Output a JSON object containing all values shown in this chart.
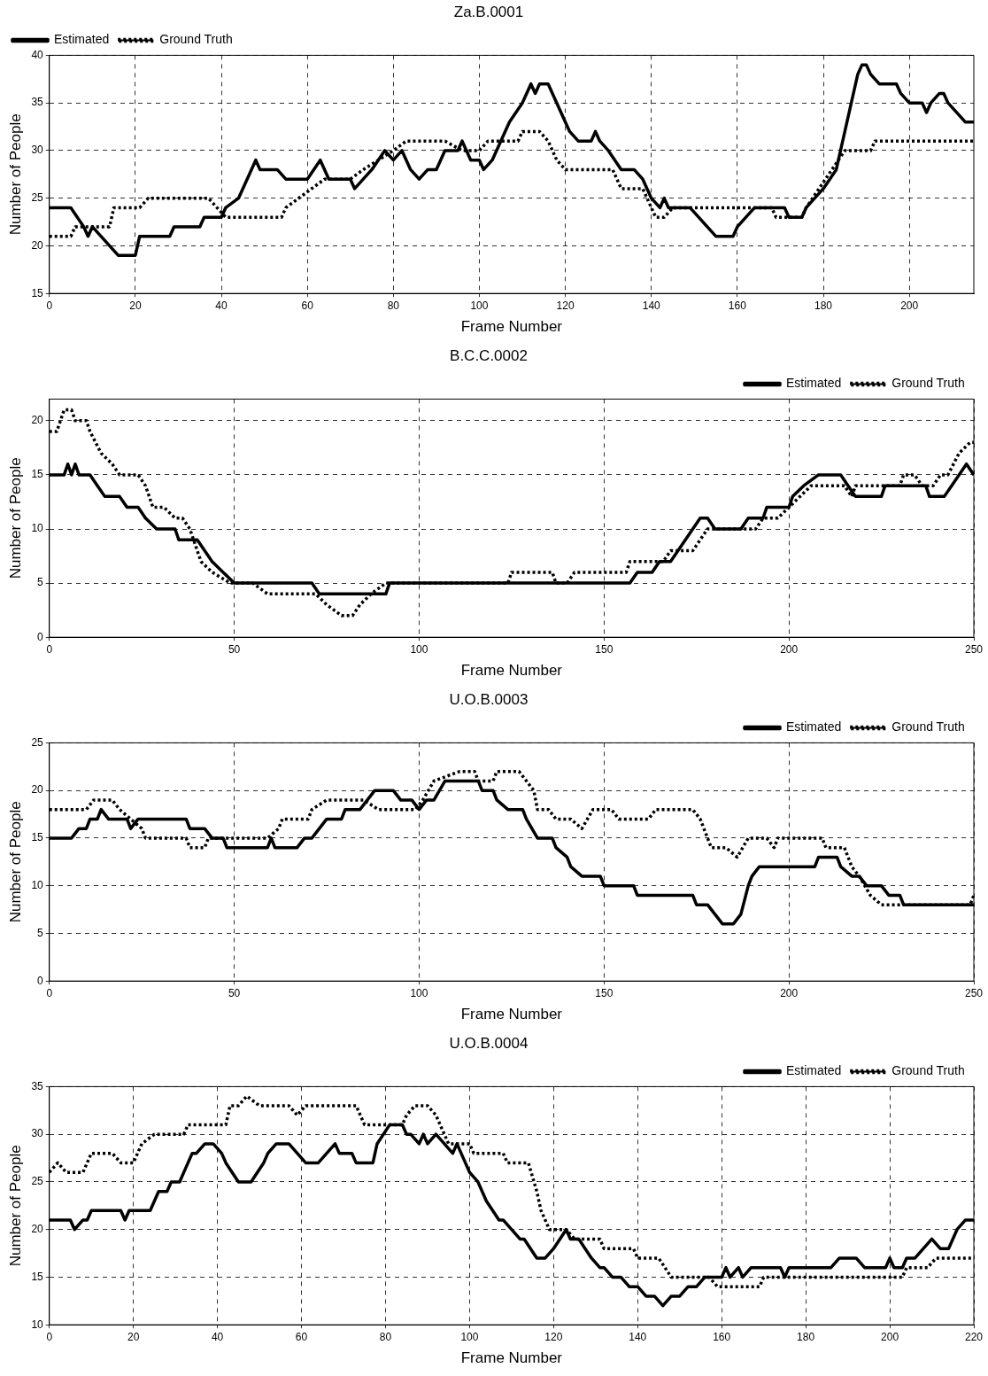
{
  "chart_data": [
    {
      "type": "line",
      "title": "Za.B.0001",
      "xlabel": "Frame Number",
      "ylabel": "Number of People",
      "xlim": [
        0,
        215
      ],
      "xticks": [
        0,
        20,
        40,
        60,
        80,
        100,
        120,
        140,
        160,
        180,
        200
      ],
      "ylim": [
        15,
        40
      ],
      "yticks": [
        15,
        20,
        25,
        30,
        35,
        40
      ],
      "grid": true,
      "legend": "top left",
      "series": [
        {
          "name": "Estimated",
          "color": "#000000",
          "line_style": "solid",
          "x": [
            0,
            5,
            8,
            9,
            10,
            12,
            14,
            16,
            20,
            21,
            28,
            29,
            35,
            36,
            40,
            41,
            44,
            48,
            49,
            53,
            55,
            60,
            63,
            65,
            70,
            71,
            73,
            75,
            78,
            80,
            82,
            84,
            86,
            88,
            90,
            92,
            95,
            96,
            98,
            100,
            101,
            103,
            106,
            107,
            110,
            112,
            113,
            114,
            116,
            118,
            120,
            121,
            123,
            126,
            127,
            128,
            130,
            133,
            136,
            138,
            140,
            142,
            143,
            144,
            149,
            151,
            153,
            155,
            159,
            160,
            162,
            164,
            171,
            172,
            175,
            176,
            178,
            180,
            183,
            185,
            187,
            188,
            189,
            190,
            191,
            193,
            197,
            198,
            200,
            203,
            204,
            205,
            207,
            208,
            209,
            211,
            213,
            215
          ],
          "values": [
            24,
            24,
            22,
            21,
            22,
            21,
            20,
            19,
            19,
            21,
            21,
            22,
            22,
            23,
            23,
            24,
            25,
            29,
            28,
            28,
            27,
            27,
            29,
            27,
            27,
            26,
            27,
            28,
            30,
            29,
            30,
            28,
            27,
            28,
            28,
            30,
            30,
            31,
            29,
            29,
            28,
            29,
            32,
            33,
            35,
            37,
            36,
            37,
            37,
            35,
            33,
            32,
            31,
            31,
            32,
            31,
            30,
            28,
            28,
            27,
            25,
            24,
            25,
            24,
            24,
            23,
            22,
            21,
            21,
            22,
            23,
            24,
            24,
            23,
            23,
            24,
            25,
            26,
            28,
            32,
            36,
            38,
            39,
            39,
            38,
            37,
            37,
            36,
            35,
            35,
            34,
            35,
            36,
            36,
            35,
            34,
            33,
            33
          ]
        },
        {
          "name": "Ground Truth",
          "color": "#000000",
          "line_style": "dotted",
          "x": [
            0,
            5,
            6,
            14,
            15,
            21,
            23,
            37,
            39,
            41,
            54,
            55,
            61,
            64,
            70,
            73,
            80,
            83,
            92,
            96,
            100,
            102,
            109,
            110,
            114,
            116,
            118,
            120,
            131,
            133,
            138,
            141,
            143,
            145,
            168,
            169,
            175,
            176,
            179,
            182,
            185,
            191,
            192,
            215
          ],
          "values": [
            21,
            21,
            22,
            22,
            24,
            24,
            25,
            25,
            24,
            23,
            23,
            24,
            26,
            27,
            27,
            28,
            30,
            31,
            31,
            30,
            30,
            31,
            31,
            32,
            32,
            31,
            29,
            28,
            28,
            26,
            26,
            23,
            23,
            24,
            24,
            23,
            23,
            24,
            26,
            28,
            30,
            30,
            31,
            31
          ]
        }
      ]
    },
    {
      "type": "line",
      "title": "B.C.C.0002",
      "xlabel": "Frame Number",
      "ylabel": "Number of People",
      "xlim": [
        0,
        250
      ],
      "xticks": [
        0,
        50,
        100,
        150,
        200,
        250
      ],
      "ylim": [
        0,
        22
      ],
      "yticks": [
        0,
        5,
        10,
        15,
        20
      ],
      "grid": true,
      "legend": "top right",
      "series": [
        {
          "name": "Estimated",
          "color": "#000000",
          "line_style": "solid",
          "x": [
            0,
            4,
            5,
            6,
            7,
            8,
            11,
            13,
            15,
            19,
            21,
            24,
            26,
            29,
            34,
            35,
            40,
            42,
            44,
            47,
            50,
            71,
            73,
            91,
            92,
            157,
            159,
            163,
            165,
            168,
            170,
            172,
            174,
            176,
            178,
            180,
            187,
            189,
            193,
            194,
            200,
            201,
            204,
            208,
            214,
            216,
            218,
            225,
            226,
            237,
            238,
            242,
            244,
            246,
            248,
            250
          ],
          "values": [
            15,
            15,
            16,
            15,
            16,
            15,
            15,
            14,
            13,
            13,
            12,
            12,
            11,
            10,
            10,
            9,
            9,
            8,
            7,
            6,
            5,
            5,
            4,
            4,
            5,
            5,
            6,
            6,
            7,
            7,
            8,
            9,
            10,
            11,
            11,
            10,
            10,
            11,
            11,
            12,
            12,
            13,
            14,
            15,
            15,
            14,
            13,
            13,
            14,
            14,
            13,
            13,
            14,
            15,
            16,
            15
          ]
        },
        {
          "name": "Ground Truth",
          "color": "#000000",
          "line_style": "dotted",
          "x": [
            0,
            2,
            3,
            4,
            6,
            7,
            10,
            11,
            14,
            17,
            19,
            24,
            26,
            28,
            31,
            34,
            36,
            38,
            39,
            41,
            44,
            49,
            55,
            59,
            72,
            75,
            79,
            82,
            84,
            87,
            91,
            124,
            125,
            136,
            137,
            140,
            142,
            156,
            157,
            166,
            168,
            174,
            176,
            178,
            191,
            193,
            197,
            200,
            203,
            206,
            215,
            217,
            218,
            230,
            231,
            234,
            236,
            239,
            241,
            243,
            246,
            249,
            250
          ],
          "values": [
            19,
            19,
            20,
            21,
            21,
            20,
            20,
            19,
            17,
            16,
            15,
            15,
            14,
            12,
            12,
            11,
            11,
            10,
            9,
            7,
            6,
            5,
            5,
            4,
            4,
            3,
            2,
            2,
            3,
            4,
            5,
            5,
            6,
            6,
            5,
            5,
            6,
            6,
            7,
            7,
            8,
            8,
            9,
            10,
            10,
            11,
            11,
            12,
            13,
            14,
            14,
            13,
            14,
            14,
            15,
            15,
            14,
            14,
            15,
            15,
            17,
            18,
            18
          ]
        }
      ]
    },
    {
      "type": "line",
      "title": "U.O.B.0003",
      "xlabel": "Frame Number",
      "ylabel": "Number of People",
      "xlim": [
        0,
        250
      ],
      "xticks": [
        0,
        50,
        100,
        150,
        200,
        250
      ],
      "ylim": [
        0,
        25
      ],
      "yticks": [
        0,
        5,
        10,
        15,
        20,
        25
      ],
      "grid": true,
      "legend": "top right",
      "series": [
        {
          "name": "Estimated",
          "color": "#000000",
          "line_style": "solid",
          "x": [
            0,
            6,
            8,
            10,
            11,
            13,
            14,
            16,
            21,
            22,
            24,
            37,
            38,
            42,
            44,
            47,
            48,
            59,
            60,
            61,
            67,
            69,
            71,
            73,
            75,
            79,
            80,
            84,
            86,
            88,
            93,
            95,
            98,
            100,
            102,
            104,
            107,
            116,
            117,
            120,
            121,
            124,
            128,
            129,
            132,
            136,
            137,
            140,
            141,
            144,
            149,
            150,
            158,
            159,
            174,
            175,
            178,
            180,
            182,
            185,
            187,
            189,
            190,
            192,
            207,
            208,
            213,
            214,
            217,
            219,
            221,
            225,
            227,
            230,
            231,
            250
          ],
          "values": [
            15,
            15,
            16,
            16,
            17,
            17,
            18,
            17,
            17,
            16,
            17,
            17,
            16,
            16,
            15,
            15,
            14,
            14,
            15,
            14,
            14,
            15,
            15,
            16,
            17,
            17,
            18,
            18,
            19,
            20,
            20,
            19,
            19,
            18,
            19,
            19,
            21,
            21,
            20,
            20,
            19,
            18,
            18,
            17,
            15,
            15,
            14,
            13,
            12,
            11,
            11,
            10,
            10,
            9,
            9,
            8,
            8,
            7,
            6,
            6,
            7,
            10,
            11,
            12,
            12,
            13,
            13,
            12,
            11,
            11,
            10,
            10,
            9,
            9,
            8,
            8
          ]
        },
        {
          "name": "Ground Truth",
          "color": "#000000",
          "line_style": "dotted",
          "x": [
            0,
            10,
            12,
            17,
            19,
            25,
            26,
            37,
            38,
            42,
            43,
            59,
            62,
            63,
            70,
            71,
            75,
            85,
            89,
            99,
            101,
            104,
            111,
            115,
            116,
            120,
            121,
            127,
            129,
            131,
            132,
            135,
            137,
            141,
            144,
            147,
            152,
            154,
            162,
            164,
            174,
            176,
            179,
            183,
            186,
            189,
            194,
            196,
            197,
            209,
            210,
            215,
            217,
            219,
            222,
            225,
            249,
            250
          ],
          "values": [
            18,
            18,
            19,
            19,
            18,
            16,
            15,
            15,
            14,
            14,
            15,
            15,
            16,
            17,
            17,
            18,
            19,
            19,
            18,
            18,
            19,
            21,
            22,
            22,
            21,
            21,
            22,
            22,
            21,
            20,
            18,
            18,
            17,
            17,
            16,
            18,
            18,
            17,
            17,
            18,
            18,
            17,
            14,
            14,
            13,
            15,
            15,
            14,
            15,
            15,
            14,
            14,
            12,
            11,
            9,
            8,
            8,
            9
          ]
        }
      ]
    },
    {
      "type": "line",
      "title": "U.O.B.0004",
      "xlabel": "Frame Number",
      "ylabel": "Number of People",
      "xlim": [
        0,
        220
      ],
      "xticks": [
        0,
        20,
        40,
        60,
        80,
        100,
        120,
        140,
        160,
        180,
        200,
        220
      ],
      "ylim": [
        10,
        35
      ],
      "yticks": [
        10,
        15,
        20,
        25,
        30,
        35
      ],
      "grid": true,
      "legend": "top right",
      "series": [
        {
          "name": "Estimated",
          "color": "#000000",
          "line_style": "solid",
          "x": [
            0,
            5,
            6,
            8,
            9,
            10,
            17,
            18,
            19,
            24,
            26,
            28,
            29,
            31,
            32,
            34,
            35,
            37,
            39,
            41,
            42,
            45,
            48,
            51,
            52,
            54,
            57,
            59,
            61,
            64,
            66,
            68,
            69,
            72,
            73,
            77,
            78,
            81,
            84,
            85,
            86,
            88,
            89,
            90,
            92,
            94,
            96,
            97,
            100,
            102,
            104,
            107,
            108,
            110,
            112,
            113,
            116,
            118,
            120,
            123,
            124,
            126,
            129,
            131,
            132,
            134,
            136,
            138,
            140,
            142,
            144,
            146,
            148,
            150,
            152,
            154,
            156,
            160,
            161,
            162,
            164,
            165,
            167,
            174,
            175,
            176,
            186,
            188,
            192,
            194,
            199,
            200,
            201,
            203,
            204,
            206,
            208,
            210,
            212,
            214,
            216,
            218,
            220
          ],
          "values": [
            21,
            21,
            20,
            21,
            21,
            22,
            22,
            21,
            22,
            22,
            24,
            24,
            25,
            25,
            26,
            28,
            28,
            29,
            29,
            28,
            27,
            25,
            25,
            27,
            28,
            29,
            29,
            28,
            27,
            27,
            28,
            29,
            28,
            28,
            27,
            27,
            29,
            31,
            31,
            30,
            30,
            29,
            30,
            29,
            30,
            29,
            28,
            29,
            26,
            25,
            23,
            21,
            21,
            20,
            19,
            19,
            17,
            17,
            18,
            20,
            19,
            19,
            17,
            16,
            16,
            15,
            15,
            14,
            14,
            13,
            13,
            12,
            13,
            13,
            14,
            14,
            15,
            15,
            16,
            15,
            16,
            15,
            16,
            16,
            15,
            16,
            16,
            17,
            17,
            16,
            16,
            17,
            16,
            16,
            17,
            17,
            18,
            19,
            18,
            18,
            20,
            21,
            21
          ]
        },
        {
          "name": "Ground Truth",
          "color": "#000000",
          "line_style": "dotted",
          "x": [
            0,
            2,
            4,
            8,
            10,
            15,
            17,
            20,
            22,
            25,
            32,
            33,
            42,
            43,
            45,
            47,
            50,
            57,
            59,
            61,
            73,
            75,
            84,
            85,
            87,
            90,
            92,
            95,
            100,
            101,
            108,
            109,
            114,
            116,
            117,
            119,
            123,
            125,
            131,
            132,
            139,
            140,
            145,
            148,
            157,
            159,
            169,
            170,
            203,
            204,
            209,
            211,
            220
          ],
          "values": [
            26,
            27,
            26,
            26,
            28,
            28,
            27,
            27,
            29,
            30,
            30,
            31,
            31,
            33,
            33,
            34,
            33,
            33,
            32,
            33,
            33,
            31,
            31,
            32,
            33,
            33,
            32,
            29,
            29,
            28,
            28,
            27,
            27,
            24,
            22,
            20,
            20,
            19,
            19,
            18,
            18,
            17,
            17,
            15,
            15,
            14,
            14,
            15,
            15,
            16,
            16,
            17,
            17
          ]
        }
      ]
    }
  ]
}
